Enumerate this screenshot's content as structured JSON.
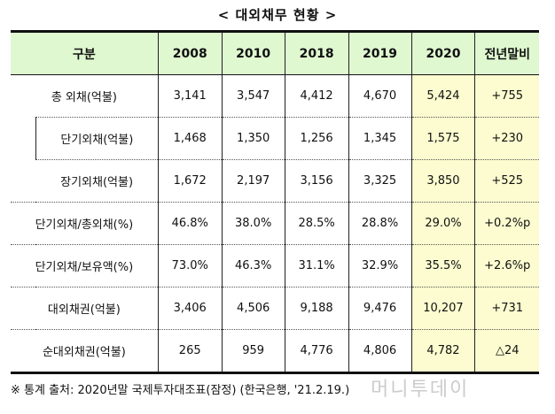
{
  "title": "< 대외채무 현황 >",
  "headers": [
    "구분",
    "2008",
    "2010",
    "2018",
    "2019",
    "2020",
    "전년말비"
  ],
  "rows": [
    {
      "label": "총 외채(억불)",
      "values": [
        "3,141",
        "3,547",
        "4,412",
        "4,670",
        "5,424",
        "+755"
      ]
    },
    {
      "label": "단기외채(억불)",
      "values": [
        "1,468",
        "1,350",
        "1,256",
        "1,345",
        "1,575",
        "+230"
      ]
    },
    {
      "label": "장기외채(억불)",
      "values": [
        "1,672",
        "2,197",
        "3,156",
        "3,325",
        "3,850",
        "+525"
      ]
    },
    {
      "label": "단기외채/총외채(%)",
      "values": [
        "46.8%",
        "38.0%",
        "28.5%",
        "28.8%",
        "29.0%",
        "+0.2%p"
      ]
    },
    {
      "label": "단기외채/보유액(%)",
      "values": [
        "73.0%",
        "46.3%",
        "31.1%",
        "32.9%",
        "35.5%",
        "+2.6%p"
      ]
    },
    {
      "label": "대외채권(억불)",
      "values": [
        "3,406",
        "4,506",
        "9,188",
        "9,476",
        "10,207",
        "+731"
      ]
    },
    {
      "label": "순대외채권(억불)",
      "values": [
        "265",
        "959",
        "4,776",
        "4,806",
        "4,782",
        "△24"
      ]
    }
  ],
  "footnote": "※ 통계 출처: 2020년말 국제투자대조표(잠정) (한국은행, '21.2.19.)",
  "watermark": "머니투데이"
}
